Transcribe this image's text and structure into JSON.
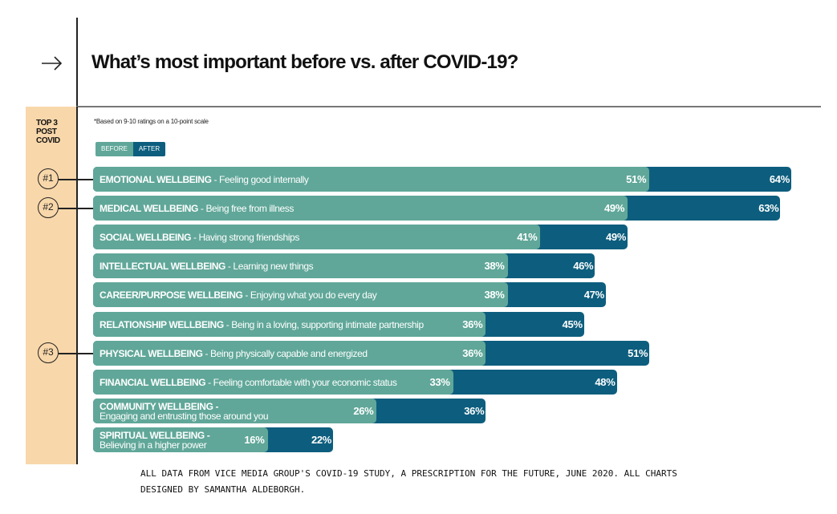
{
  "title": "What’s most important before vs. after COVID-19?",
  "note": "*Based on 9-10 ratings on a 10-point scale",
  "sidebar_label": "TOP 3\nPOST\nCOVID",
  "legend": {
    "before": "BEFORE",
    "after": "AFTER"
  },
  "colors": {
    "before": "#60a799",
    "after": "#0d5e7e",
    "sidebar": "#f8d7aa"
  },
  "footer": "ALL DATA FROM VICE MEDIA GROUP'S COVID-19 STUDY, A PRESCRIPTION FOR THE FUTURE, JUNE 2020. ALL CHARTS DESIGNED BY SAMANTHA ALDEBORGH.",
  "icons": {
    "header": "arrow-right-icon"
  },
  "chart_data": {
    "type": "bar",
    "orientation": "horizontal",
    "title": "What’s most important before vs. after COVID-19?",
    "categories": [
      "EMOTIONAL WELLBEING",
      "MEDICAL WELLBEING",
      "SOCIAL WELLBEING",
      "INTELLECTUAL WELLBEING",
      "CAREER/PURPOSE WELLBEING",
      "RELATIONSHIP WELLBEING",
      "PHYSICAL WELLBEING",
      "FINANCIAL WELLBEING",
      "COMMUNITY WELLBEING",
      "SPIRITUAL WELLBEING"
    ],
    "descriptions": [
      " - Feeling good internally",
      " - Being free from illness",
      " - Having strong friendships",
      " - Learning new things",
      " - Enjoying what you do every day",
      " - Being in a loving, supporting intimate partnership",
      " - Being physically capable and energized",
      " - Feeling comfortable with your economic status",
      "Engaging and entrusting those around you",
      "Believing in a higher power"
    ],
    "two_line": [
      false,
      false,
      false,
      false,
      false,
      false,
      false,
      false,
      true,
      true
    ],
    "ranks": [
      "#1",
      "#2",
      "",
      "",
      "",
      "",
      "#3",
      "",
      "",
      ""
    ],
    "series": [
      {
        "name": "BEFORE",
        "values": [
          51,
          49,
          41,
          38,
          38,
          36,
          36,
          33,
          26,
          16
        ]
      },
      {
        "name": "AFTER",
        "values": [
          64,
          63,
          49,
          46,
          47,
          45,
          51,
          48,
          36,
          22
        ]
      }
    ],
    "value_suffix": "%",
    "xlim": [
      0,
      64
    ],
    "legend_position": "top-left"
  }
}
